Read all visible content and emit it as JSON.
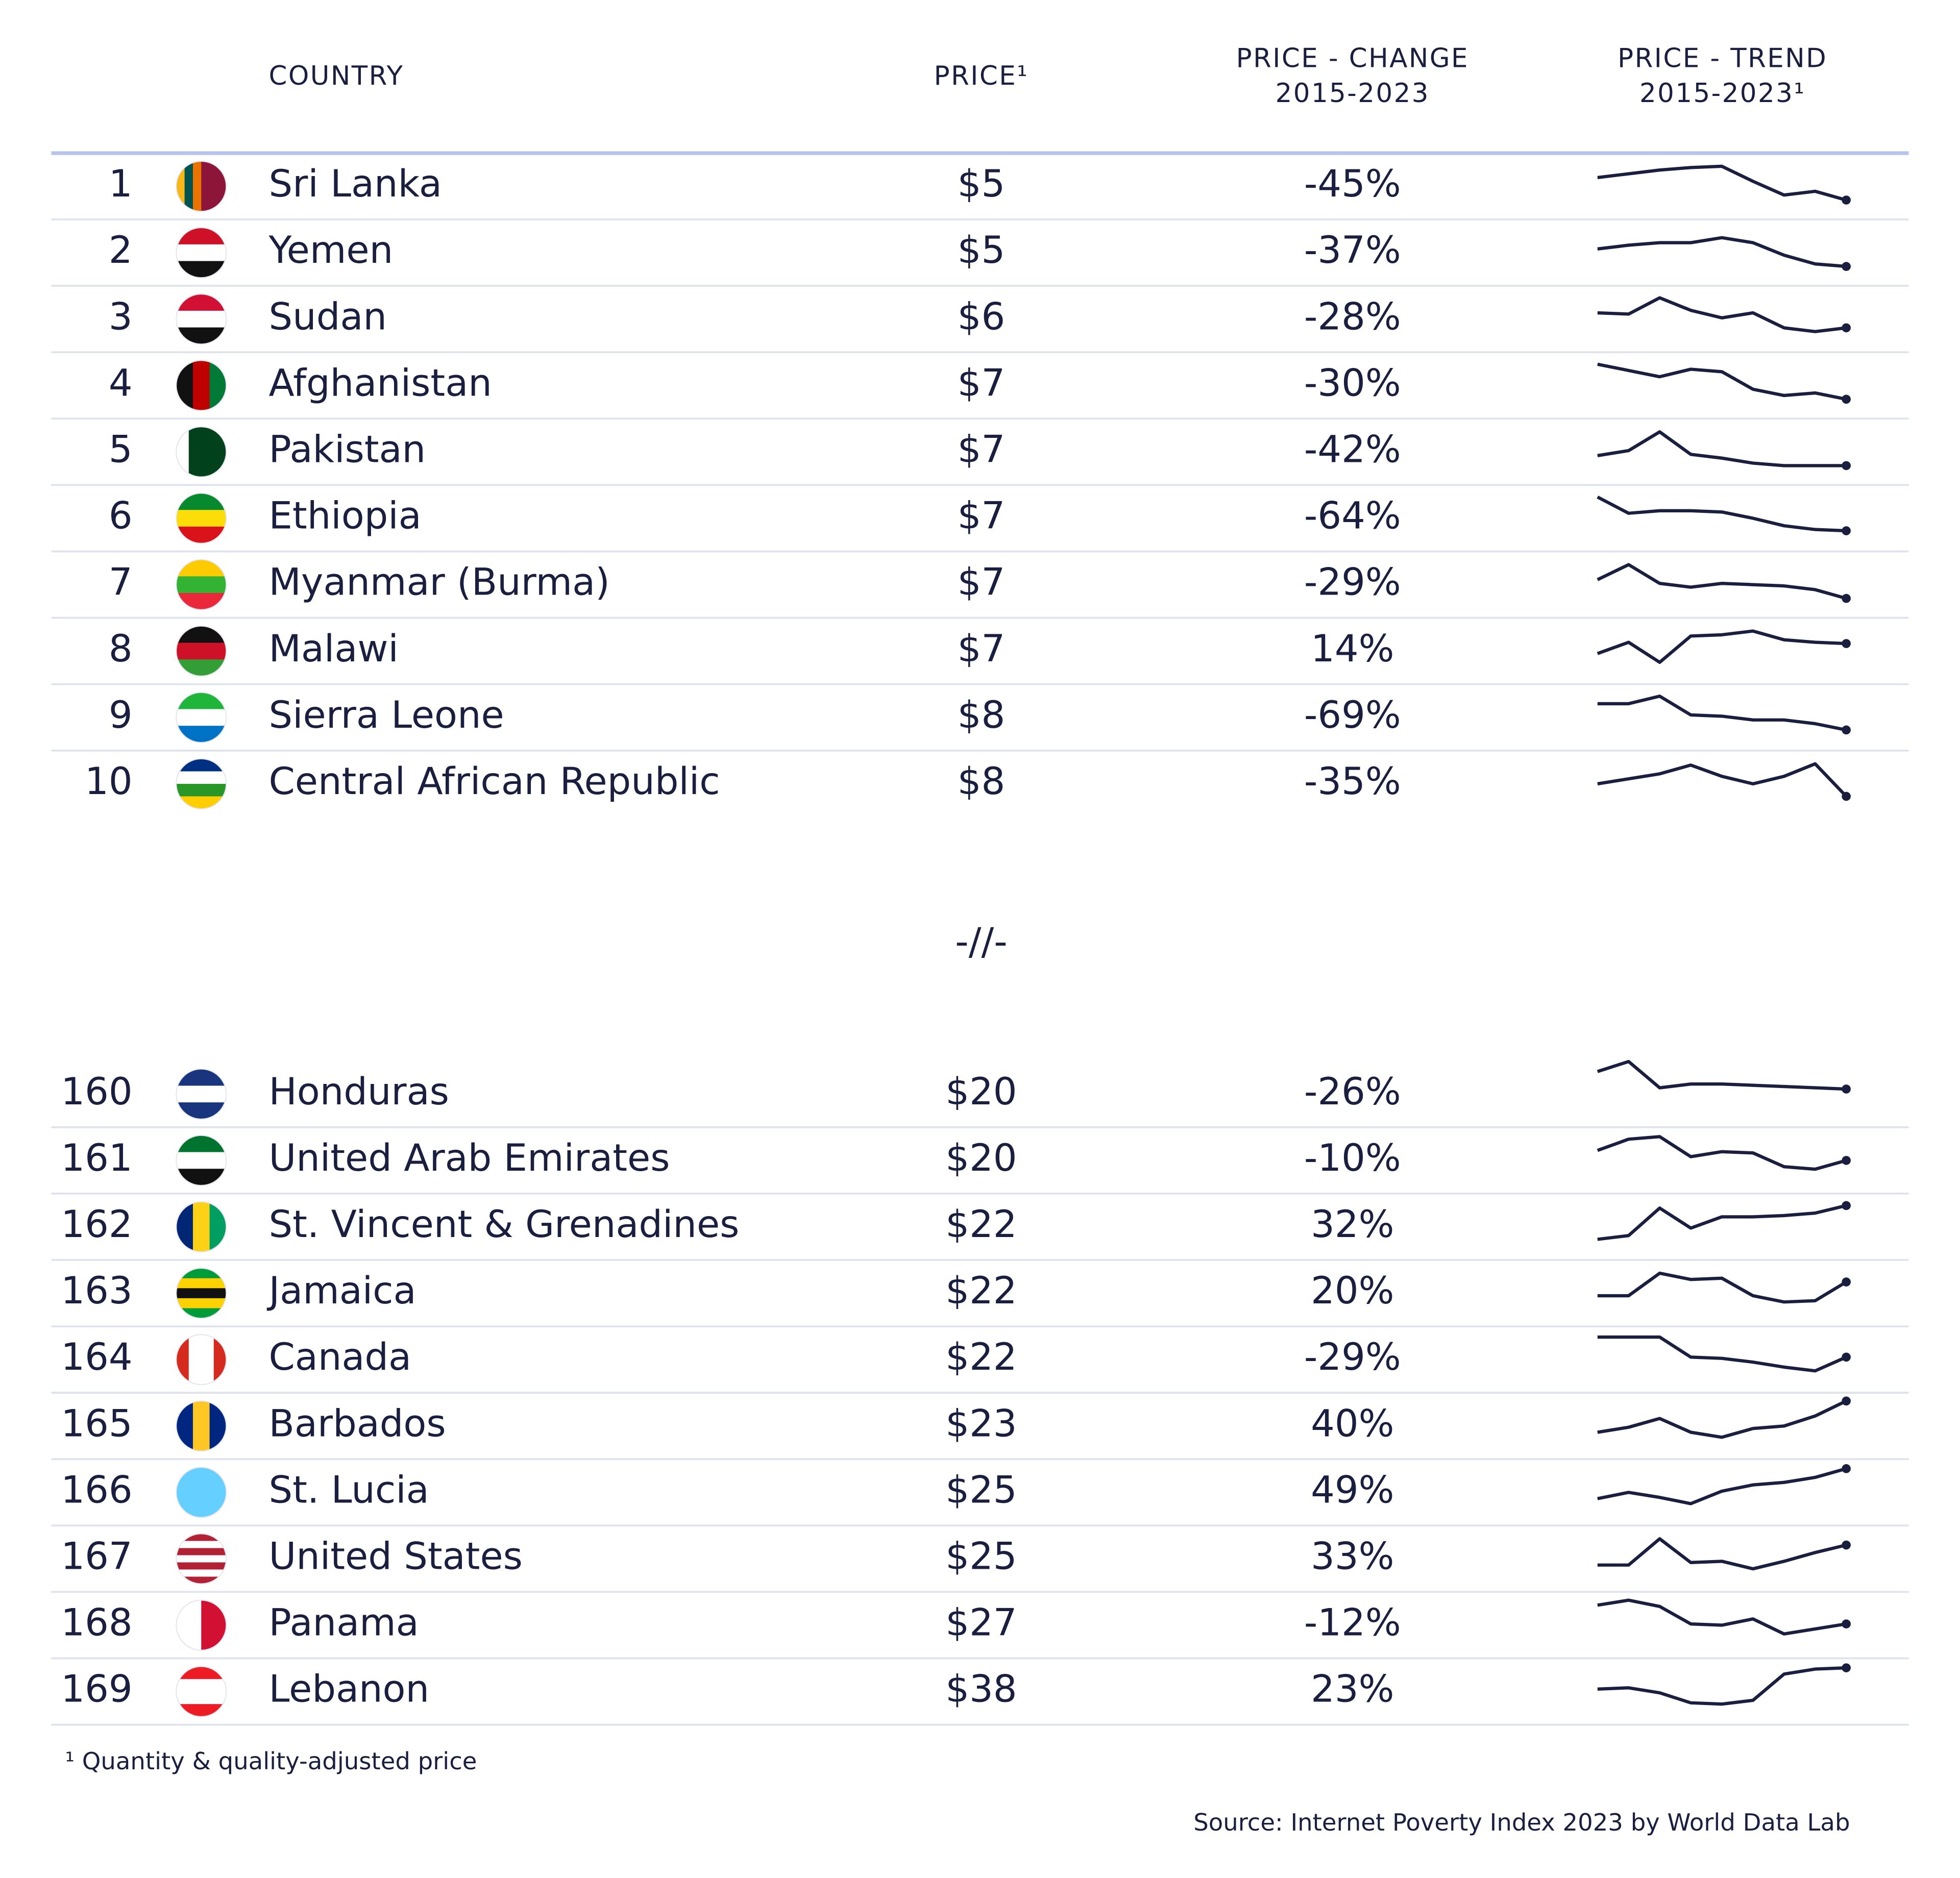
{
  "header": {
    "columns": {
      "country": "COUNTRY",
      "price": "PRICE¹",
      "change": [
        "PRICE - CHANGE",
        "2015-2023"
      ],
      "trend": [
        "PRICE - TREND",
        "2015-2023¹"
      ]
    }
  },
  "table": {
    "sections": [
      {
        "rows": [
          {
            "rank": 1,
            "country": "Sri Lanka",
            "price": "$5",
            "change": "-45%",
            "trend": [
              19,
              22,
              25,
              27,
              28,
              16,
              5,
              8,
              1
            ]
          },
          {
            "rank": 2,
            "country": "Yemen",
            "price": "$5",
            "change": "-37%",
            "trend": [
              15,
              18,
              20,
              20,
              24,
              20,
              10,
              3,
              1
            ]
          },
          {
            "rank": 3,
            "country": "Sudan",
            "price": "$6",
            "change": "-28%",
            "trend": [
              17,
              16,
              29,
              19,
              13,
              17,
              5,
              2,
              5
            ]
          },
          {
            "rank": 4,
            "country": "Afghanistan",
            "price": "$7",
            "change": "-30%",
            "trend": [
              29,
              24,
              19,
              25,
              23,
              9,
              4,
              6,
              1
            ]
          },
          {
            "rank": 5,
            "country": "Pakistan",
            "price": "$7",
            "change": "-42%",
            "trend": [
              9,
              13,
              28,
              10,
              7,
              3,
              1,
              1,
              1
            ]
          },
          {
            "rank": 6,
            "country": "Ethiopia",
            "price": "$7",
            "change": "-64%",
            "trend": [
              29,
              16,
              18,
              18,
              17,
              12,
              6,
              3,
              2
            ]
          },
          {
            "rank": 7,
            "country": "Myanmar (Burma)",
            "price": "$7",
            "change": "-29%",
            "trend": [
              16,
              28,
              13,
              10,
              13,
              12,
              11,
              8,
              1
            ]
          },
          {
            "rank": 8,
            "country": "Malawi",
            "price": "$7",
            "change": "14%",
            "trend": [
              10,
              19,
              3,
              24,
              25,
              28,
              21,
              19,
              18
            ]
          },
          {
            "rank": 9,
            "country": "Sierra Leone",
            "price": "$8",
            "change": "-69%",
            "trend": [
              23,
              23,
              29,
              14,
              13,
              10,
              10,
              7,
              2
            ]
          },
          {
            "rank": 10,
            "country": "Central African Republic",
            "price": "$8",
            "change": "-35%",
            "trend": [
              12,
              16,
              20,
              27,
              18,
              12,
              18,
              28,
              2
            ]
          }
        ]
      },
      {
        "rows": [
          {
            "rank": 160,
            "country": "Honduras",
            "price": "$20",
            "change": "-26%",
            "trend": [
              30,
              38,
              17,
              20,
              20,
              19,
              18,
              17,
              16
            ]
          },
          {
            "rank": 161,
            "country": "United Arab Emirates",
            "price": "$20",
            "change": "-10%",
            "trend": [
              20,
              29,
              31,
              15,
              19,
              18,
              7,
              5,
              12
            ]
          },
          {
            "rank": 162,
            "country": "St. Vincent & Grenadines",
            "price": "$22",
            "change": "32%",
            "trend": [
              2,
              5,
              27,
              11,
              20,
              20,
              21,
              23,
              29
            ]
          },
          {
            "rank": 163,
            "country": "Jamaica",
            "price": "$22",
            "change": "20%",
            "trend": [
              10,
              10,
              28,
              23,
              24,
              10,
              5,
              6,
              21
            ]
          },
          {
            "rank": 164,
            "country": "Canada",
            "price": "$22",
            "change": "-29%",
            "trend": [
              30,
              30,
              30,
              14,
              13,
              10,
              6,
              3,
              14
            ]
          },
          {
            "rank": 165,
            "country": "Barbados",
            "price": "$23",
            "change": "40%",
            "trend": [
              7,
              11,
              18,
              7,
              3,
              10,
              12,
              20,
              32
            ]
          },
          {
            "rank": 166,
            "country": "St. Lucia",
            "price": "$25",
            "change": "49%",
            "trend": [
              7,
              12,
              8,
              3,
              13,
              18,
              20,
              24,
              31
            ]
          },
          {
            "rank": 167,
            "country": "United States",
            "price": "$25",
            "change": "33%",
            "trend": [
              7,
              7,
              28,
              9,
              10,
              4,
              10,
              17,
              23
            ]
          },
          {
            "rank": 168,
            "country": "Panama",
            "price": "$27",
            "change": "-12%",
            "trend": [
              28,
              32,
              27,
              13,
              12,
              17,
              5,
              9,
              13
            ]
          },
          {
            "rank": 169,
            "country": "Lebanon",
            "price": "$38",
            "change": "23%",
            "trend": [
              14,
              15,
              11,
              3,
              2,
              5,
              26,
              30,
              31
            ]
          }
        ]
      }
    ],
    "separator": "-//-"
  },
  "footnote": "¹ Quantity & quality-adjusted price",
  "source": "Source: Internet Poverty Index 2023 by World Data Lab"
}
